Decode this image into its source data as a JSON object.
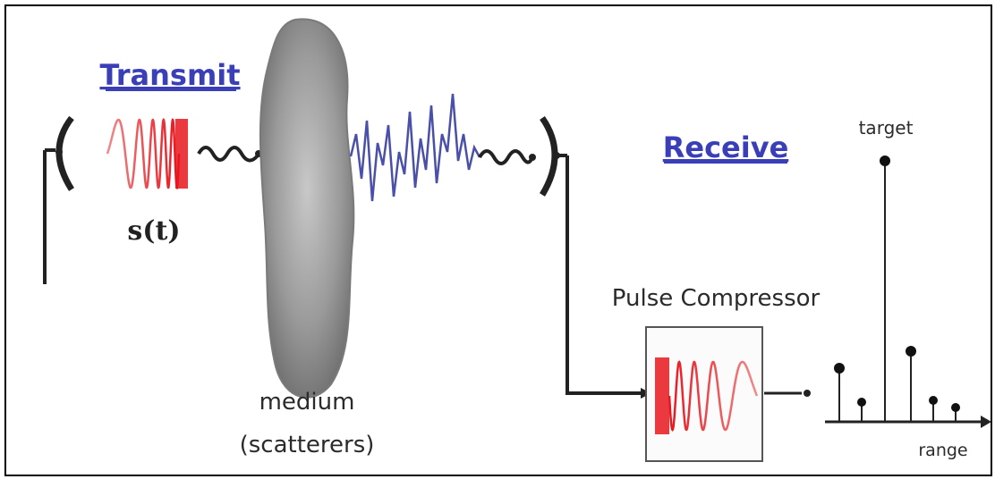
{
  "labels": {
    "transmit": "Transmit",
    "receive": "Receive",
    "signal": "s(t)",
    "medium_line1": "medium",
    "medium_line2": "(scatterers)",
    "pulse_compressor": "Pulse Compressor",
    "target": "target",
    "range": "range"
  },
  "colors": {
    "frame": "#000000",
    "chirp": "#e8161f",
    "echo": "#4a4fa8",
    "link_text": "#3a3fb8",
    "medium": "#9a9a9a",
    "lines": "#222222"
  }
}
